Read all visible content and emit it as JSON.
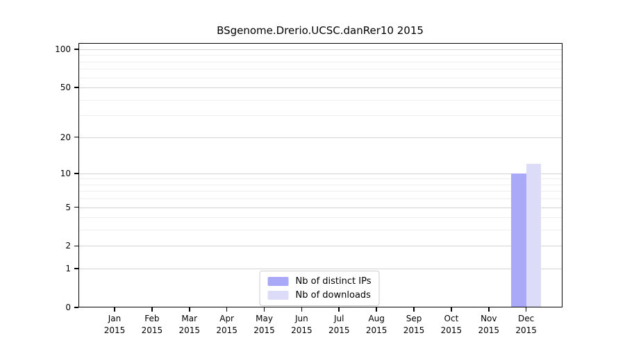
{
  "chart_data": {
    "type": "bar",
    "title": "BSgenome.Drerio.UCSC.danRer10 2015",
    "categories": [
      "Jan",
      "Feb",
      "Mar",
      "Apr",
      "May",
      "Jun",
      "Jul",
      "Aug",
      "Sep",
      "Oct",
      "Nov",
      "Dec"
    ],
    "year": "2015",
    "series": [
      {
        "name": "Nb of distinct IPs",
        "color": "#a9a9f7",
        "values": [
          0,
          0,
          0,
          0,
          0,
          0,
          0,
          0,
          0,
          0,
          0,
          10
        ]
      },
      {
        "name": "Nb of downloads",
        "color": "#dcdcf9",
        "values": [
          0,
          0,
          0,
          0,
          0,
          0,
          0,
          0,
          0,
          0,
          0,
          12
        ]
      }
    ],
    "y_ticks": [
      0,
      1,
      2,
      5,
      10,
      20,
      50,
      100
    ],
    "y_minor_ticks": [
      3,
      4,
      6,
      7,
      8,
      9,
      30,
      40,
      60,
      70,
      80,
      90
    ],
    "y_scale": "log1p",
    "ymax": 112,
    "grid": true,
    "legend_position": "bottom-center"
  }
}
